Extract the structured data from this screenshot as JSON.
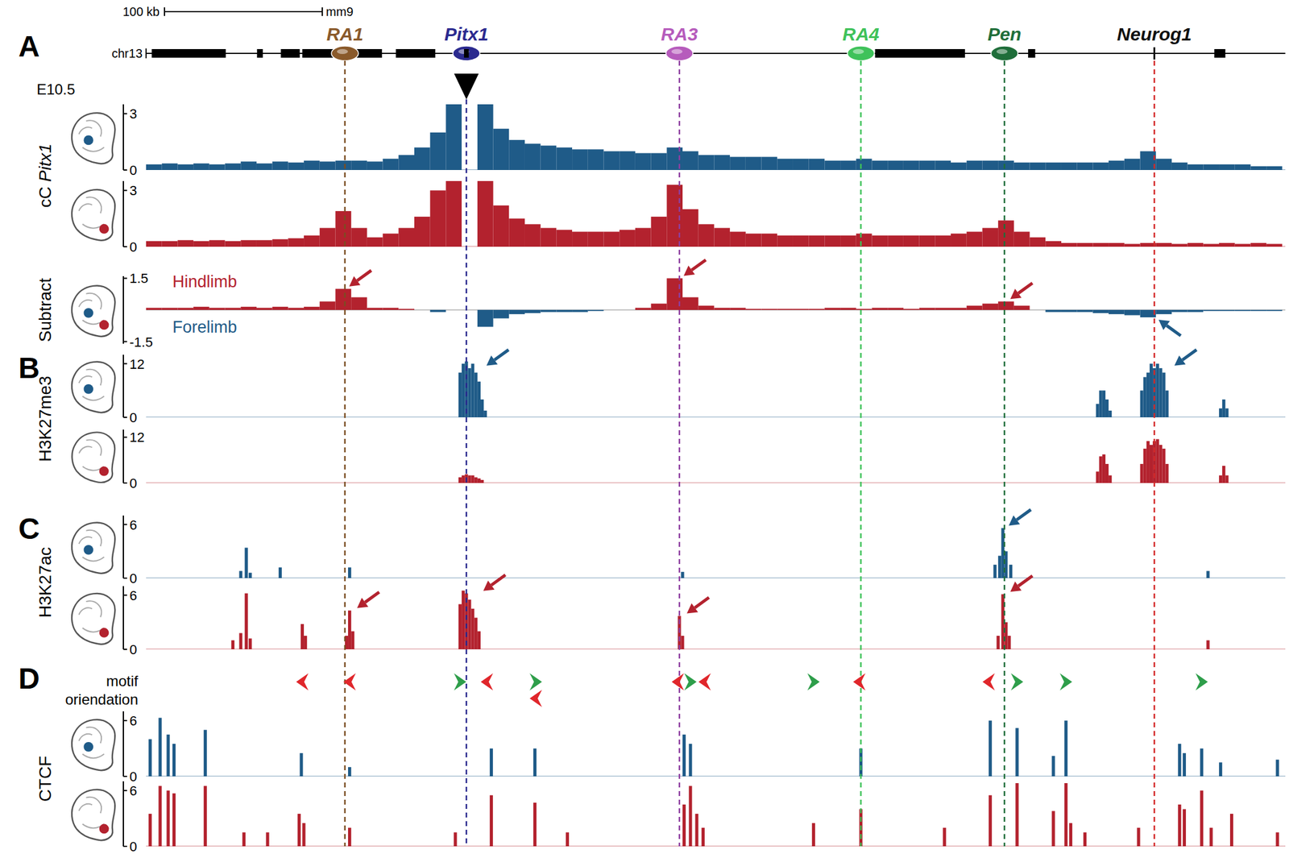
{
  "figure": {
    "stage": "E10.5"
  },
  "locus": {
    "panel": "A",
    "chromosome": "chr13",
    "assembly": "mm9",
    "scale_bar": {
      "label": "100 kb",
      "length": 100
    },
    "xlim": [
      0,
      722
    ],
    "viewpoint": 203,
    "genes": [
      [
        3.6,
        50.5
      ],
      [
        70.3,
        74
      ],
      [
        85.4,
        97.4
      ],
      [
        99,
        149.5
      ],
      [
        158.3,
        183.3
      ],
      [
        201.5,
        204.5
      ],
      [
        462,
        519
      ],
      [
        559,
        563.5
      ],
      [
        677,
        684
      ]
    ],
    "elements": [
      {
        "name": "RA1",
        "x": 126,
        "color": "#8a5a2b",
        "line_color": "#7a4e22",
        "marker": "ellipse"
      },
      {
        "name": "Pitx1",
        "x": 203,
        "color": "#2b2a8f",
        "line_color": "#2b2a8f",
        "marker": "ellipse"
      },
      {
        "name": "RA3",
        "x": 338,
        "color": "#b65cbc",
        "line_color": "#8e3fa0",
        "marker": "ellipse"
      },
      {
        "name": "RA4",
        "x": 453,
        "color": "#3fc25a",
        "line_color": "#3fc25a",
        "marker": "ellipse"
      },
      {
        "name": "Pen",
        "x": 544,
        "color": "#1f6e3a",
        "line_color": "#1f6e3a",
        "marker": "ellipse"
      },
      {
        "name": "Neurog1",
        "x": 639,
        "color": "#111111",
        "line_color": "#d42a2a",
        "marker": "tick"
      }
    ]
  },
  "chart_data": [
    {
      "type": "bar",
      "ylabel": "cC Pitx1",
      "color": "#1f5b88",
      "bin_width": 10,
      "ylim": [
        0,
        3.5
      ],
      "yticks": [
        0,
        3
      ],
      "x": [
        5,
        15,
        25,
        35,
        45,
        55,
        65,
        75,
        85,
        95,
        105,
        115,
        125,
        135,
        145,
        155,
        165,
        175,
        185,
        195,
        205,
        215,
        225,
        235,
        245,
        255,
        265,
        275,
        285,
        295,
        305,
        315,
        325,
        335,
        345,
        355,
        365,
        375,
        385,
        395,
        405,
        415,
        425,
        435,
        445,
        455,
        465,
        475,
        485,
        495,
        505,
        515,
        525,
        535,
        545,
        555,
        565,
        575,
        585,
        595,
        605,
        615,
        625,
        635,
        645,
        655,
        665,
        675,
        685,
        695,
        705,
        715
      ],
      "values": [
        0.3,
        0.35,
        0.3,
        0.35,
        0.3,
        0.35,
        0.45,
        0.35,
        0.45,
        0.4,
        0.5,
        0.45,
        0.5,
        0.5,
        0.45,
        0.6,
        0.8,
        1.2,
        2.0,
        3.5,
        null,
        3.5,
        2.2,
        1.6,
        1.4,
        1.3,
        1.2,
        1.1,
        1.1,
        1.0,
        1.0,
        0.9,
        0.9,
        1.2,
        1.0,
        0.8,
        0.8,
        0.7,
        0.7,
        0.7,
        0.6,
        0.6,
        0.6,
        0.5,
        0.5,
        0.6,
        0.5,
        0.5,
        0.5,
        0.5,
        0.5,
        0.4,
        0.5,
        0.5,
        0.5,
        0.4,
        0.4,
        0.4,
        0.4,
        0.4,
        0.4,
        0.5,
        0.6,
        1.0,
        0.6,
        0.4,
        0.3,
        0.3,
        0.3,
        0.3,
        0.2,
        0.2
      ]
    },
    {
      "type": "bar",
      "color": "#b3222e",
      "bin_width": 10,
      "ylim": [
        0,
        3.5
      ],
      "yticks": [
        0,
        3
      ],
      "x": [
        5,
        15,
        25,
        35,
        45,
        55,
        65,
        75,
        85,
        95,
        105,
        115,
        125,
        135,
        145,
        155,
        165,
        175,
        185,
        195,
        205,
        215,
        225,
        235,
        245,
        255,
        265,
        275,
        285,
        295,
        305,
        315,
        325,
        335,
        345,
        355,
        365,
        375,
        385,
        395,
        405,
        415,
        425,
        435,
        445,
        455,
        465,
        475,
        485,
        495,
        505,
        515,
        525,
        535,
        545,
        555,
        565,
        575,
        585,
        595,
        605,
        615,
        625,
        635,
        645,
        655,
        665,
        675,
        685,
        695,
        705,
        715
      ],
      "values": [
        0.3,
        0.3,
        0.35,
        0.3,
        0.35,
        0.3,
        0.35,
        0.35,
        0.4,
        0.45,
        0.6,
        1.0,
        1.9,
        1.0,
        0.5,
        0.7,
        1.0,
        1.6,
        3.0,
        3.5,
        null,
        3.5,
        2.2,
        1.5,
        1.2,
        1.0,
        0.9,
        0.8,
        0.8,
        0.8,
        0.9,
        1.0,
        1.6,
        3.3,
        2.0,
        1.2,
        1.0,
        0.8,
        0.7,
        0.7,
        0.6,
        0.6,
        0.6,
        0.6,
        0.6,
        0.7,
        0.6,
        0.6,
        0.6,
        0.6,
        0.6,
        0.7,
        0.8,
        1.0,
        1.4,
        0.8,
        0.5,
        0.3,
        0.2,
        0.2,
        0.2,
        0.2,
        0.15,
        0.2,
        0.2,
        0.15,
        0.2,
        0.15,
        0.2,
        0.15,
        0.2,
        0.15
      ]
    },
    {
      "type": "bar",
      "ylabel": "Subtract",
      "bin_width": 10,
      "ylim": [
        -1.6,
        1.6
      ],
      "yticks": [
        -1.5,
        1.5
      ],
      "x": [
        5,
        15,
        25,
        35,
        45,
        55,
        65,
        75,
        85,
        95,
        105,
        115,
        125,
        135,
        145,
        155,
        165,
        175,
        185,
        195,
        205,
        215,
        225,
        235,
        245,
        255,
        265,
        275,
        285,
        295,
        305,
        315,
        325,
        335,
        345,
        355,
        365,
        375,
        385,
        395,
        405,
        415,
        425,
        435,
        445,
        455,
        465,
        475,
        485,
        495,
        505,
        515,
        525,
        535,
        545,
        555,
        565,
        575,
        585,
        595,
        605,
        615,
        625,
        635,
        645,
        655,
        665,
        675,
        685,
        695,
        705,
        715
      ],
      "series": [
        {
          "name": "Hindlimb",
          "color": "#b3222e",
          "values": [
            0.1,
            0.1,
            0.1,
            0.15,
            0.1,
            0.1,
            0.15,
            0.1,
            0.15,
            0.1,
            0.15,
            0.4,
            1.0,
            0.6,
            0.1,
            0.1,
            0.05,
            0,
            null,
            null,
            null,
            null,
            null,
            null,
            null,
            null,
            null,
            null,
            null,
            0,
            0,
            0.1,
            0.3,
            1.5,
            0.6,
            0.2,
            0.1,
            0.1,
            0.05,
            0.05,
            0.05,
            0.05,
            0.05,
            0.1,
            0.1,
            0.05,
            0.1,
            0.1,
            0.05,
            0.1,
            0.1,
            0.1,
            0.2,
            0.3,
            0.4,
            0.2,
            0,
            null,
            null,
            null,
            null,
            null,
            null,
            null,
            null,
            null,
            null,
            null,
            null,
            null,
            null,
            null
          ]
        },
        {
          "name": "Forelimb",
          "color": "#1f5b88",
          "values": [
            null,
            null,
            null,
            null,
            null,
            null,
            null,
            null,
            null,
            null,
            null,
            null,
            null,
            null,
            null,
            null,
            null,
            null,
            -0.1,
            null,
            null,
            -0.8,
            -0.4,
            -0.2,
            -0.15,
            -0.1,
            -0.1,
            -0.1,
            -0.05,
            null,
            null,
            null,
            null,
            null,
            null,
            null,
            null,
            null,
            null,
            null,
            null,
            null,
            null,
            null,
            null,
            null,
            null,
            null,
            null,
            null,
            null,
            null,
            null,
            null,
            null,
            null,
            null,
            -0.1,
            -0.1,
            -0.1,
            -0.15,
            -0.2,
            -0.25,
            -0.35,
            -0.2,
            -0.1,
            -0.1,
            -0.05,
            -0.05,
            -0.05,
            -0.05,
            -0.05
          ]
        }
      ],
      "arrows": [
        {
          "x": 126,
          "y": 1.0
        },
        {
          "x": 338,
          "y": 1.5
        },
        {
          "x": 545,
          "y": 0.4
        },
        {
          "x": 639,
          "y": -0.35
        }
      ]
    },
    {
      "type": "bar",
      "panel": "B",
      "ylabel": "H3K27me3",
      "color": "#1f5b88",
      "bin_width": 2,
      "ylim": [
        0,
        14
      ],
      "yticks": [
        0,
        12
      ],
      "x": [
        199,
        201,
        203,
        205,
        207,
        209,
        211,
        213,
        215,
        603,
        605,
        607,
        609,
        611,
        631,
        633,
        635,
        637,
        639,
        641,
        643,
        645,
        647,
        681,
        683,
        685
      ],
      "values": [
        10,
        12,
        12.5,
        11,
        12,
        10,
        8,
        4,
        1.5,
        3,
        6,
        6,
        4,
        1.5,
        6,
        9,
        10,
        12,
        11,
        12,
        11,
        10,
        6,
        2,
        4,
        2
      ],
      "arrows": [
        {
          "x": 213,
          "y": 11
        },
        {
          "x": 649,
          "y": 11
        }
      ]
    },
    {
      "type": "bar",
      "color": "#b3222e",
      "bin_width": 2,
      "ylim": [
        0,
        14
      ],
      "yticks": [
        0,
        12
      ],
      "x": [
        199,
        201,
        203,
        205,
        207,
        209,
        211,
        213,
        603,
        605,
        607,
        609,
        611,
        631,
        633,
        635,
        637,
        639,
        641,
        643,
        645,
        647,
        681,
        683,
        685
      ],
      "values": [
        1.5,
        2,
        2.3,
        2,
        2,
        1.5,
        1.2,
        0.8,
        3,
        7,
        7.5,
        5,
        2,
        5,
        9,
        11,
        10,
        11,
        11.5,
        10,
        9,
        5,
        2,
        4.5,
        2
      ]
    },
    {
      "type": "bar",
      "panel": "C",
      "ylabel": "H3K27ac",
      "color": "#1f5b88",
      "bin_width": 2,
      "ylim": [
        0,
        7
      ],
      "yticks": [
        0,
        6
      ],
      "x": [
        60,
        63.5,
        66,
        85,
        129,
        340,
        538,
        541,
        543,
        545,
        548,
        673
      ],
      "values": [
        0.8,
        3.4,
        0.6,
        1.2,
        1.2,
        0.7,
        1.5,
        2.5,
        5.6,
        3,
        1.5,
        0.8
      ],
      "arrows": [
        {
          "x": 544,
          "y": 5.6
        }
      ]
    },
    {
      "type": "bar",
      "color": "#b3222e",
      "bin_width": 2,
      "ylim": [
        0,
        7
      ],
      "yticks": [
        0,
        6
      ],
      "x": [
        55,
        60,
        63.5,
        66,
        99,
        101,
        127,
        129,
        131,
        199,
        201,
        203,
        205,
        207,
        209,
        211,
        338,
        340,
        540,
        543,
        545,
        547,
        673
      ],
      "values": [
        1,
        1.8,
        6.2,
        1.2,
        2.8,
        1.5,
        1.5,
        4.3,
        2,
        5,
        6.5,
        6.2,
        5.5,
        4.5,
        3.5,
        2,
        3.7,
        1.5,
        1.5,
        6.1,
        3,
        1.5,
        1
      ],
      "arrows": [
        {
          "x": 131,
          "y": 4.3
        },
        {
          "x": 211,
          "y": 6.2
        },
        {
          "x": 340,
          "y": 3.7
        },
        {
          "x": 545,
          "y": 6.1
        }
      ]
    },
    {
      "type": "bar",
      "ylabel": "CTCF",
      "color": "#1f5b88",
      "bin_width": 2,
      "ylim": [
        0,
        7
      ],
      "yticks": [
        0,
        6
      ],
      "x": [
        2.6,
        8.9,
        14,
        17.7,
        37.5,
        98.4,
        129,
        218.8,
        246.4,
        341,
        345,
        453,
        535,
        552,
        575,
        583,
        655,
        658,
        669,
        681,
        717
      ],
      "values": [
        4.0,
        6.3,
        4.5,
        3.5,
        5.0,
        2.5,
        1.0,
        3.0,
        3.0,
        4.5,
        3.5,
        3.0,
        6.0,
        5.2,
        2.2,
        6.0,
        3.5,
        2.5,
        3.0,
        1.5,
        1.8
      ]
    },
    {
      "type": "bar",
      "color": "#b3222e",
      "bin_width": 2,
      "ylim": [
        0,
        7
      ],
      "yticks": [
        0,
        6
      ],
      "x": [
        2.6,
        8.9,
        14,
        17.7,
        37.5,
        62,
        77,
        97,
        100,
        129,
        196,
        218.8,
        246.4,
        267,
        341,
        345,
        349,
        353,
        423,
        453,
        506,
        535,
        552,
        575,
        583,
        586,
        595,
        629,
        655,
        658,
        669,
        675,
        688,
        717
      ],
      "values": [
        3.5,
        6.5,
        6.0,
        5.7,
        6.5,
        1.5,
        1.5,
        3.5,
        2.5,
        2.0,
        1.5,
        5.5,
        4.7,
        1.5,
        4.5,
        6.5,
        3.5,
        2.0,
        2.5,
        4.0,
        2.0,
        5.5,
        6.8,
        3.8,
        6.8,
        2.5,
        1.5,
        2.0,
        4.5,
        4.0,
        6.0,
        2.0,
        3.5,
        1.5
      ]
    }
  ],
  "motifs": {
    "panel": "D",
    "label": "motif oriendation",
    "x": [
      99,
      129,
      199,
      216,
      247,
      247,
      337,
      345,
      354,
      423,
      452,
      534,
      552,
      583,
      669
    ],
    "orientation": [
      "reverse",
      "reverse",
      "forward",
      "reverse",
      "forward",
      "reverse",
      "reverse",
      "forward",
      "reverse",
      "forward",
      "reverse",
      "reverse",
      "forward",
      "forward",
      "forward"
    ]
  }
}
